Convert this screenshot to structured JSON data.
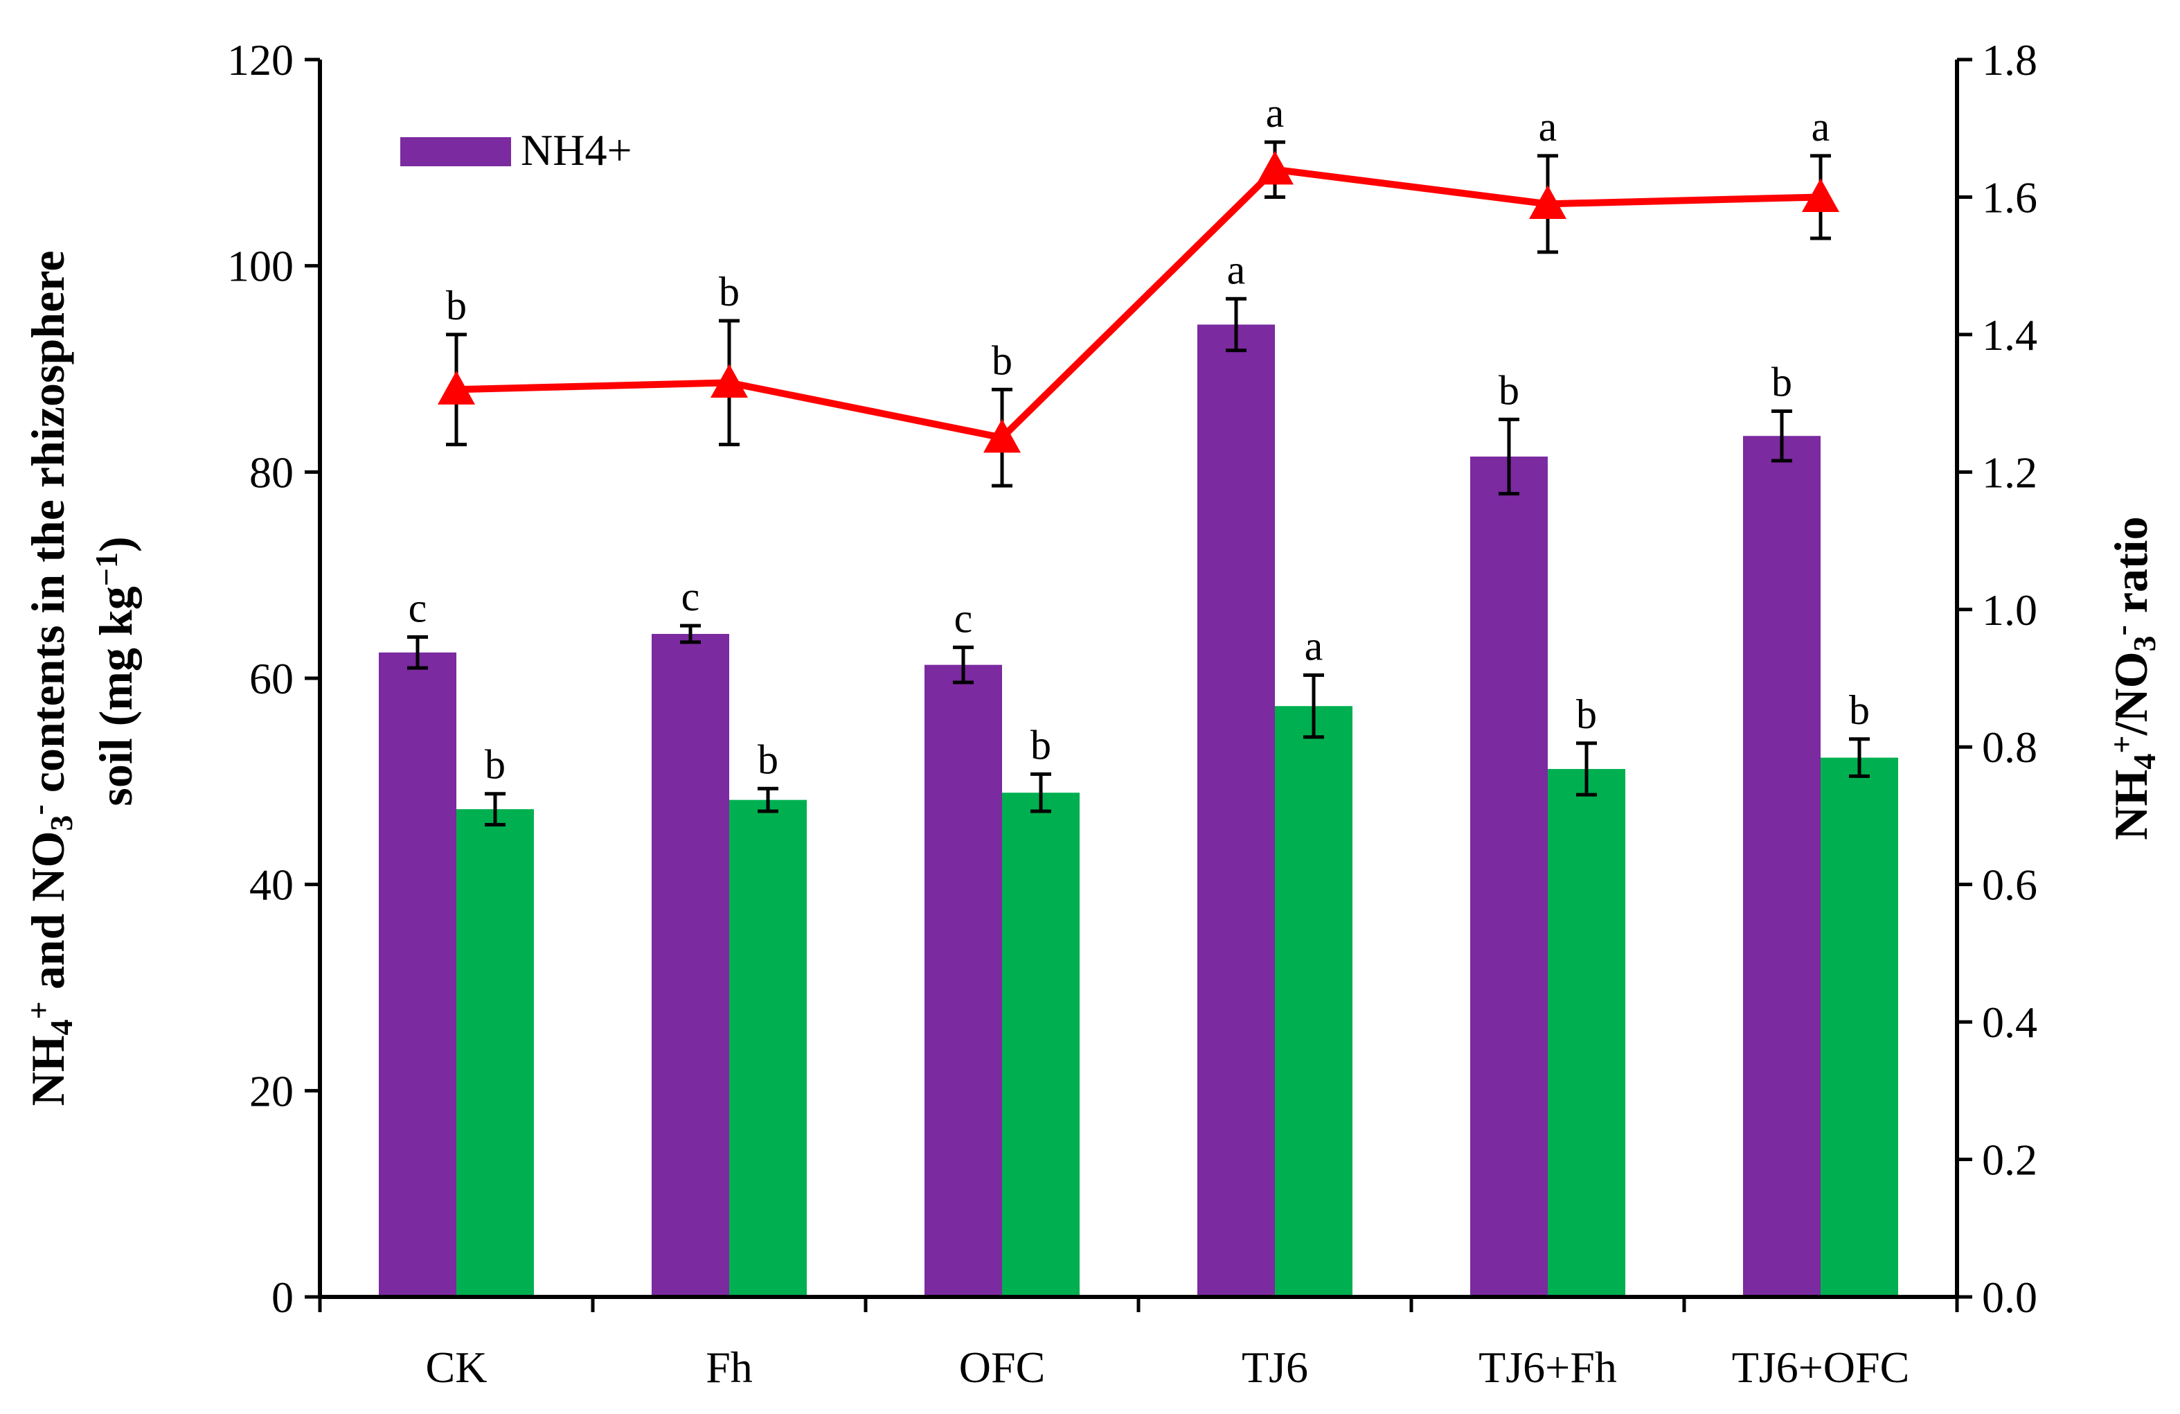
{
  "chart_data": {
    "type": "bar",
    "categories": [
      "CK",
      "Fh",
      "OFC",
      "TJ6",
      "TJ6+Fh",
      "TJ6+OFC"
    ],
    "series": [
      {
        "name": "NH4+",
        "kind": "bar",
        "axis": "left",
        "color": "#7B2AA0",
        "values": [
          62.5,
          64.3,
          61.3,
          94.3,
          81.5,
          83.5
        ],
        "errors": [
          1.5,
          0.8,
          1.7,
          2.5,
          3.6,
          2.4
        ],
        "significance": [
          "c",
          "c",
          "c",
          "a",
          "b",
          "b"
        ]
      },
      {
        "name": "NO3-",
        "kind": "bar",
        "axis": "left",
        "color": "#00B050",
        "values": [
          47.3,
          48.2,
          48.9,
          57.3,
          51.2,
          52.3
        ],
        "errors": [
          1.5,
          1.1,
          1.8,
          3.0,
          2.5,
          1.8
        ],
        "significance": [
          "b",
          "b",
          "b",
          "a",
          "b",
          "b"
        ]
      },
      {
        "name": "NH4+/NO3- ratio",
        "kind": "line",
        "axis": "right",
        "color": "#FF0000",
        "values": [
          1.32,
          1.33,
          1.25,
          1.64,
          1.59,
          1.6
        ],
        "errors": [
          0.08,
          0.09,
          0.07,
          0.04,
          0.07,
          0.06
        ],
        "significance": [
          "b",
          "b",
          "b",
          "a",
          "a",
          "a"
        ]
      }
    ],
    "legend": [
      {
        "label": "NH4+",
        "color": "#7B2AA0"
      }
    ],
    "legend_position": "top-left",
    "y_left": {
      "min": 0,
      "max": 120,
      "step": 20,
      "ticks": [
        "0",
        "20",
        "40",
        "60",
        "80",
        "100",
        "120"
      ],
      "label": {
        "line1_parts": [
          "NH",
          "4",
          "+",
          " and NO",
          "3",
          "-",
          "  contents in the rhizosphere"
        ],
        "line2_parts": [
          "soil (mg kg",
          "−1",
          ")"
        ]
      }
    },
    "y_right": {
      "min": 0,
      "max": 1.8,
      "step": 0.2,
      "ticks": [
        "0.0",
        "0.2",
        "0.4",
        "0.6",
        "0.8",
        "1.0",
        "1.2",
        "1.4",
        "1.6",
        "1.8"
      ],
      "label": {
        "parts": [
          "NH",
          "4",
          "+",
          "/NO",
          "3",
          "-",
          " ratio"
        ]
      }
    },
    "grid": false
  }
}
